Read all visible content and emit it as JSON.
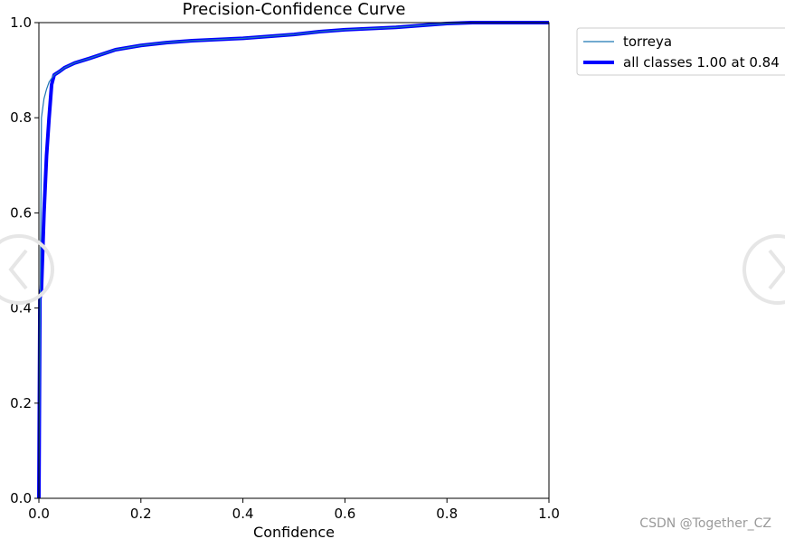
{
  "chart_data": {
    "type": "line",
    "title": "Precision-Confidence Curve",
    "xlabel": "Confidence",
    "ylabel": "",
    "xlim": [
      0.0,
      1.0
    ],
    "ylim": [
      0.0,
      1.0
    ],
    "xticks": [
      "0.0",
      "0.2",
      "0.4",
      "0.6",
      "0.8",
      "1.0"
    ],
    "yticks": [
      "0.0",
      "0.2",
      "0.4",
      "0.6",
      "0.8",
      "1.0"
    ],
    "grid": false,
    "legend": "top-right outside",
    "series": [
      {
        "name": "torreya",
        "color": "#1f77b4",
        "style": "thin",
        "x": [
          0.0,
          0.002,
          0.005,
          0.01,
          0.015,
          0.02,
          0.025,
          0.03,
          0.04,
          0.05,
          0.07,
          0.1,
          0.15,
          0.2,
          0.25,
          0.3,
          0.4,
          0.5,
          0.55,
          0.6,
          0.7,
          0.8,
          0.85,
          1.0
        ],
        "y": [
          0.0,
          0.3,
          0.8,
          0.84,
          0.86,
          0.875,
          0.883,
          0.89,
          0.897,
          0.905,
          0.915,
          0.925,
          0.943,
          0.952,
          0.958,
          0.962,
          0.967,
          0.975,
          0.981,
          0.985,
          0.99,
          0.998,
          1.0,
          1.0
        ]
      },
      {
        "name": "all classes 1.00 at 0.84",
        "color": "#0000ff",
        "style": "thick",
        "x": [
          0.0,
          0.002,
          0.005,
          0.01,
          0.015,
          0.02,
          0.025,
          0.03,
          0.04,
          0.05,
          0.07,
          0.1,
          0.15,
          0.2,
          0.25,
          0.3,
          0.4,
          0.5,
          0.55,
          0.6,
          0.7,
          0.8,
          0.85,
          1.0
        ],
        "y": [
          0.0,
          0.42,
          0.44,
          0.6,
          0.72,
          0.8,
          0.87,
          0.89,
          0.897,
          0.905,
          0.915,
          0.925,
          0.943,
          0.952,
          0.958,
          0.962,
          0.967,
          0.975,
          0.981,
          0.985,
          0.99,
          0.998,
          1.0,
          1.0
        ]
      }
    ]
  },
  "watermark": "CSDN @Together_CZ"
}
